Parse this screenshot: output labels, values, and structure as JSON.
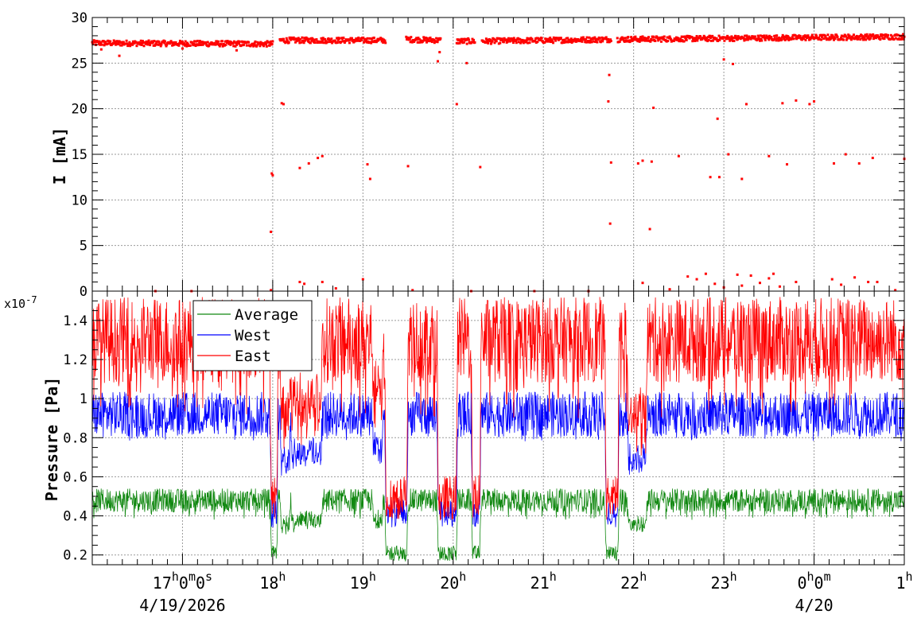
{
  "chart_data": [
    {
      "type": "scatter",
      "title": "",
      "ylabel": "I [mA]",
      "ylim": [
        0,
        30
      ],
      "y_ticks": [
        0,
        5,
        10,
        15,
        20,
        25,
        30
      ],
      "y_tick_labels": [
        "0",
        "5",
        "10",
        "15",
        "20",
        "25",
        "30"
      ],
      "grid": true,
      "series": [
        {
          "color": "#ff0000",
          "baseline_segments": [
            {
              "x": [
                16.0,
                18.0
              ],
              "y": [
                27.2,
                27.1
              ]
            },
            {
              "x": [
                18.08,
                19.25
              ],
              "y": [
                27.5,
                27.5
              ]
            },
            {
              "x": [
                19.48,
                19.86
              ],
              "y": [
                27.6,
                27.5
              ]
            },
            {
              "x": [
                20.04,
                20.24
              ],
              "y": [
                27.4,
                27.4
              ]
            },
            {
              "x": [
                20.32,
                21.75
              ],
              "y": [
                27.4,
                27.6
              ]
            },
            {
              "x": [
                21.82,
                25.0
              ],
              "y": [
                27.6,
                27.9
              ]
            }
          ],
          "scatter_points": [
            [
              16.3,
              25.8
            ],
            [
              16.1,
              26.5
            ],
            [
              17.0,
              26.6
            ],
            [
              17.6,
              26.4
            ],
            [
              17.99,
              12.9
            ],
            [
              18.0,
              12.7
            ],
            [
              17.98,
              6.5
            ],
            [
              18.1,
              20.6
            ],
            [
              18.12,
              20.5
            ],
            [
              18.3,
              13.5
            ],
            [
              18.4,
              14.0
            ],
            [
              18.5,
              14.6
            ],
            [
              18.55,
              14.8
            ],
            [
              19.05,
              13.9
            ],
            [
              19.08,
              12.3
            ],
            [
              19.5,
              13.7
            ],
            [
              19.85,
              26.2
            ],
            [
              19.83,
              25.2
            ],
            [
              20.04,
              20.5
            ],
            [
              20.3,
              13.6
            ],
            [
              20.15,
              25.0
            ],
            [
              21.73,
              23.7
            ],
            [
              21.72,
              20.8
            ],
            [
              21.75,
              14.1
            ],
            [
              21.74,
              7.4
            ],
            [
              22.05,
              14.0
            ],
            [
              22.1,
              14.3
            ],
            [
              22.2,
              14.2
            ],
            [
              22.22,
              20.1
            ],
            [
              22.18,
              6.8
            ],
            [
              22.5,
              14.8
            ],
            [
              22.85,
              12.5
            ],
            [
              22.95,
              12.5
            ],
            [
              22.93,
              18.9
            ],
            [
              23.0,
              25.4
            ],
            [
              23.1,
              24.9
            ],
            [
              23.05,
              15.0
            ],
            [
              23.2,
              12.3
            ],
            [
              23.25,
              20.5
            ],
            [
              23.5,
              14.8
            ],
            [
              23.65,
              20.6
            ],
            [
              23.7,
              13.9
            ],
            [
              23.8,
              20.9
            ],
            [
              23.95,
              20.5
            ],
            [
              24.0,
              20.8
            ],
            [
              24.22,
              14.0
            ],
            [
              24.35,
              15.0
            ],
            [
              24.5,
              14.0
            ],
            [
              24.65,
              14.6
            ],
            [
              25.0,
              14.5
            ]
          ],
          "zero_points": [
            [
              16.7,
              0.0
            ],
            [
              17.1,
              0.0
            ],
            [
              17.98,
              0.1
            ],
            [
              18.3,
              1.0
            ],
            [
              18.35,
              0.8
            ],
            [
              18.55,
              1.0
            ],
            [
              18.7,
              0.3
            ],
            [
              19.0,
              1.3
            ],
            [
              19.55,
              0.1
            ],
            [
              20.2,
              0.0
            ],
            [
              20.9,
              0.0
            ],
            [
              21.5,
              0.0
            ],
            [
              22.1,
              0.9
            ],
            [
              22.4,
              0.2
            ],
            [
              22.6,
              1.6
            ],
            [
              22.7,
              1.3
            ],
            [
              22.8,
              1.9
            ],
            [
              22.9,
              0.8
            ],
            [
              23.0,
              0.4
            ],
            [
              23.15,
              1.8
            ],
            [
              23.2,
              0.6
            ],
            [
              23.3,
              1.7
            ],
            [
              23.4,
              0.9
            ],
            [
              23.5,
              1.4
            ],
            [
              23.55,
              1.9
            ],
            [
              23.62,
              0.5
            ],
            [
              23.8,
              1.0
            ],
            [
              24.2,
              1.3
            ],
            [
              24.3,
              0.7
            ],
            [
              24.45,
              1.5
            ],
            [
              24.6,
              1.0
            ],
            [
              24.7,
              1.0
            ],
            [
              24.9,
              0.1
            ]
          ]
        }
      ]
    },
    {
      "type": "line",
      "title": "",
      "ylabel": "Pressure [Pa]",
      "y_multiplier": "x10",
      "y_multiplier_exponent": "-7",
      "ylim": [
        0.15,
        1.55
      ],
      "y_ticks": [
        0.2,
        0.4,
        0.6,
        0.8,
        1.0,
        1.2,
        1.4
      ],
      "y_tick_labels": [
        "0.2",
        "0.4",
        "0.6",
        "0.8",
        "1",
        "1.2",
        "1.4"
      ],
      "xlim": [
        16.0,
        25.0
      ],
      "x_ticks": [
        17,
        18,
        19,
        20,
        21,
        22,
        23,
        24,
        25
      ],
      "grid": true,
      "legend": "top-left",
      "dropouts": [
        {
          "t0": 17.97,
          "t1": 18.06,
          "depth": 1.0
        },
        {
          "t0": 18.08,
          "t1": 18.2,
          "depth": 0.45
        },
        {
          "t0": 18.2,
          "t1": 18.55,
          "depth": 0.38
        },
        {
          "t0": 19.1,
          "t1": 19.23,
          "depth": 0.35
        },
        {
          "t0": 19.24,
          "t1": 19.5,
          "depth": 1.0
        },
        {
          "t0": 19.82,
          "t1": 20.05,
          "depth": 1.0
        },
        {
          "t0": 20.2,
          "t1": 20.31,
          "depth": 1.0
        },
        {
          "t0": 21.68,
          "t1": 21.84,
          "depth": 1.0
        },
        {
          "t0": 21.93,
          "t1": 22.15,
          "depth": 0.45
        }
      ],
      "series": [
        {
          "name": "Average",
          "color": "#118811",
          "nominal": 0.48,
          "noise_range": [
            0.38,
            0.53
          ],
          "min": 0.17
        },
        {
          "name": "West",
          "color": "#0000ff",
          "nominal": 0.92,
          "noise_range": [
            0.78,
            1.07
          ],
          "min": 0.34
        },
        {
          "name": "East",
          "color": "#ff0000",
          "nominal": 1.3,
          "noise_range": [
            0.9,
            1.45
          ],
          "min": 0.38
        }
      ]
    }
  ],
  "x_axis": {
    "tick_labels": [
      {
        "t": 17,
        "base": "17",
        "sup": "h",
        "rest": [
          [
            "0",
            "m"
          ],
          [
            "0",
            "s"
          ]
        ]
      },
      {
        "t": 18,
        "base": "18",
        "sup": "h",
        "rest": []
      },
      {
        "t": 19,
        "base": "19",
        "sup": "h",
        "rest": []
      },
      {
        "t": 20,
        "base": "20",
        "sup": "h",
        "rest": []
      },
      {
        "t": 21,
        "base": "21",
        "sup": "h",
        "rest": []
      },
      {
        "t": 22,
        "base": "22",
        "sup": "h",
        "rest": []
      },
      {
        "t": 23,
        "base": "23",
        "sup": "h",
        "rest": []
      },
      {
        "t": 24,
        "base": "0",
        "sup": "h",
        "rest": [
          [
            "0",
            "m"
          ]
        ]
      },
      {
        "t": 25,
        "base": "1",
        "sup": "h",
        "rest": []
      }
    ],
    "date_labels": [
      {
        "t": 17,
        "text": "4/19/2026"
      },
      {
        "t": 24,
        "text": "4/20"
      }
    ]
  }
}
